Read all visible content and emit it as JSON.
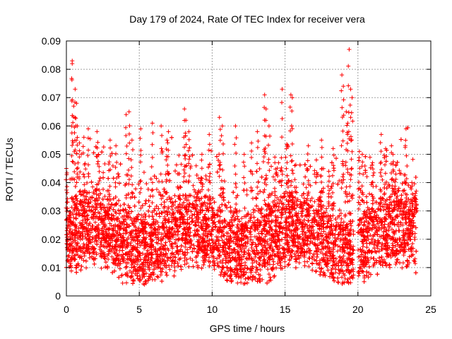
{
  "chart_data": {
    "type": "scatter",
    "title": "Day 179 of 2024, Rate Of TEC Index for receiver vera",
    "xlabel": "GPS time / hours",
    "ylabel": "ROTI / TECUs",
    "xlim": [
      0,
      25
    ],
    "ylim": [
      0,
      0.09
    ],
    "xticks": [
      0,
      5,
      10,
      15,
      20,
      25
    ],
    "xtick_labels": [
      "0",
      "5",
      "10",
      "15",
      "20",
      "25"
    ],
    "yticks": [
      0,
      0.01,
      0.02,
      0.03,
      0.04,
      0.05,
      0.06,
      0.07,
      0.08,
      0.09
    ],
    "ytick_labels": [
      "0",
      "0.01",
      "0.02",
      "0.03",
      "0.04",
      "0.05",
      "0.06",
      "0.07",
      "0.08",
      "0.09"
    ],
    "grid": true,
    "marker": "plus",
    "color": "#ff0000",
    "data_gap_hours": [
      19.7,
      20.0
    ],
    "data_end_hour": 24.0,
    "series": [
      {
        "name": "ROTI",
        "x": [
          0.0,
          0.4,
          0.4,
          0.5,
          0.6,
          0.7,
          0.75,
          0.9,
          1.2,
          1.5,
          2.1,
          2.2,
          3.0,
          3.4,
          4.1,
          4.3,
          4.5,
          5.1,
          5.9,
          6.5,
          6.9,
          7.0,
          8.1,
          8.2,
          8.4,
          9.3,
          9.8,
          10.5,
          10.7,
          11.6,
          12.2,
          12.7,
          13.1,
          13.6,
          13.7,
          13.9,
          14.3,
          14.8,
          15.1,
          15.4,
          15.5,
          16.6,
          17.5,
          18.0,
          18.3,
          18.9,
          19.0,
          19.2,
          19.3,
          19.4,
          19.5,
          19.6,
          20.1,
          20.3,
          21.0,
          21.6,
          21.9,
          22.3,
          22.4,
          22.6,
          23.3,
          23.7,
          24.0
        ],
        "y": [
          0.045,
          0.083,
          0.082,
          0.067,
          0.073,
          0.068,
          0.06,
          0.054,
          0.056,
          0.059,
          0.058,
          0.05,
          0.055,
          0.053,
          0.064,
          0.065,
          0.055,
          0.059,
          0.061,
          0.06,
          0.055,
          0.058,
          0.066,
          0.062,
          0.058,
          0.05,
          0.057,
          0.063,
          0.06,
          0.06,
          0.05,
          0.054,
          0.058,
          0.071,
          0.066,
          0.06,
          0.049,
          0.073,
          0.052,
          0.071,
          0.07,
          0.053,
          0.055,
          0.044,
          0.052,
          0.078,
          0.074,
          0.065,
          0.061,
          0.087,
          0.073,
          0.07,
          0.051,
          0.05,
          0.047,
          0.057,
          0.052,
          0.053,
          0.05,
          0.043,
          0.059,
          0.04,
          0.037
        ]
      }
    ]
  }
}
